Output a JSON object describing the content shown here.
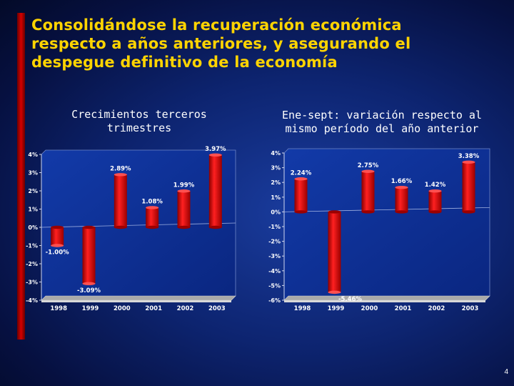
{
  "title_lines": [
    "Consolidándose la recuperación económica",
    "respecto a años anteriores, y asegurando el",
    "despegue definitivo de la economía"
  ],
  "page_number": "4",
  "colors": {
    "title": "#ffd400",
    "bar": "#e00000",
    "left_bar": "#c00000",
    "background": "#0d2470"
  },
  "chart_data": [
    {
      "type": "bar",
      "title_lines": [
        "Crecimientos terceros",
        "trimestres"
      ],
      "categories": [
        "1998",
        "1999",
        "2000",
        "2001",
        "2002",
        "2003"
      ],
      "values": [
        -1.0,
        -3.09,
        2.89,
        1.08,
        1.99,
        3.97
      ],
      "data_labels": [
        "-1.00%",
        "-3.09%",
        "2.89%",
        "1.08%",
        "1.99%",
        "3.97%"
      ],
      "ylim": [
        -4,
        4
      ],
      "yticks": [
        "4%",
        "3%",
        "2%",
        "1%",
        "0%",
        "-1%",
        "-2%",
        "-3%",
        "-4%"
      ],
      "ytick_values": [
        4,
        3,
        2,
        1,
        0,
        -1,
        -2,
        -3,
        -4
      ],
      "xlabel": "",
      "ylabel": "",
      "grid": false
    },
    {
      "type": "bar",
      "title_lines": [
        "Ene-sept: variación respecto al",
        "mismo período del año anterior"
      ],
      "categories": [
        "1998",
        "1999",
        "2000",
        "2001",
        "2002",
        "2003"
      ],
      "values": [
        2.24,
        -5.46,
        2.75,
        1.66,
        1.42,
        3.38
      ],
      "data_labels": [
        "2.24%",
        "-5.46%",
        "2.75%",
        "1.66%",
        "1.42%",
        "3.38%"
      ],
      "ylim": [
        -6,
        4
      ],
      "yticks": [
        "4%",
        "3%",
        "2%",
        "1%",
        "0%",
        "-1%",
        "-2%",
        "-3%",
        "-4%",
        "-5%",
        "-6%"
      ],
      "ytick_values": [
        4,
        3,
        2,
        1,
        0,
        -1,
        -2,
        -3,
        -4,
        -5,
        -6
      ],
      "xlabel": "",
      "ylabel": "",
      "grid": false
    }
  ]
}
